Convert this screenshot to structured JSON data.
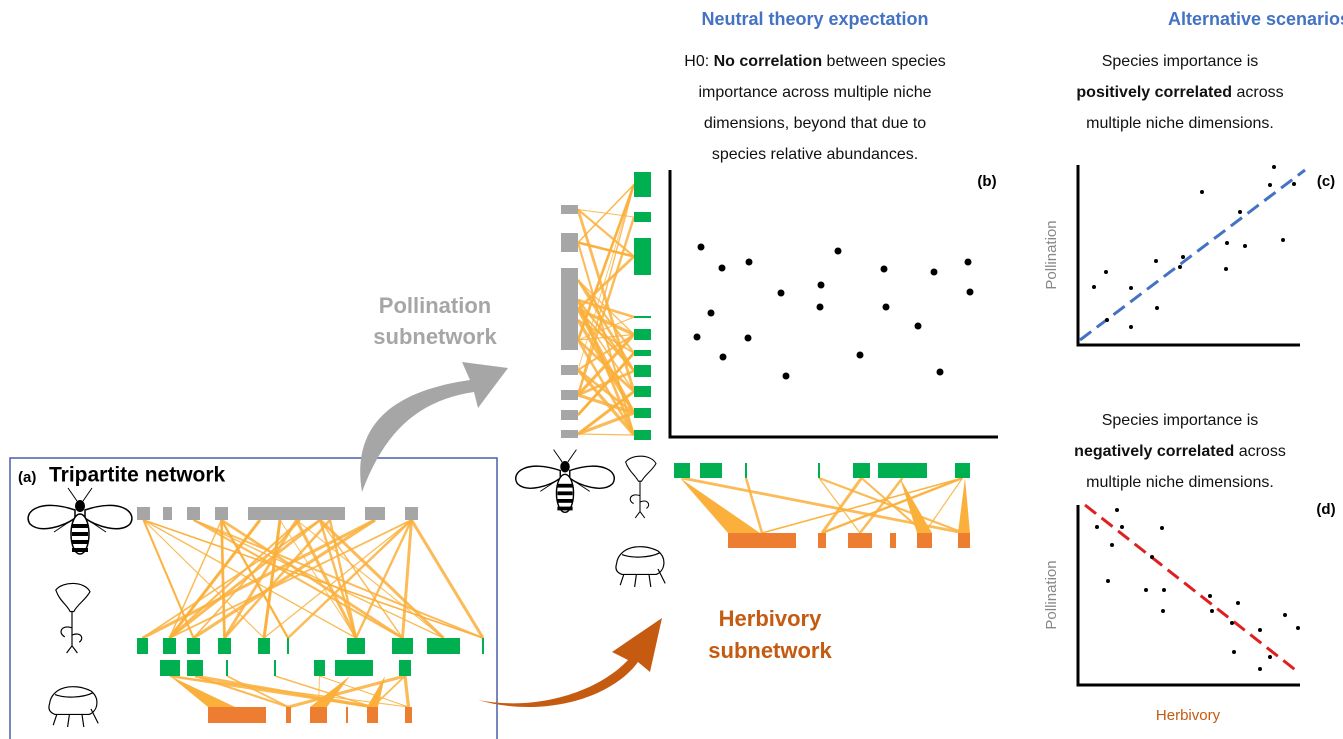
{
  "panel_a": {
    "label": "(a)",
    "title": "Tripartite network"
  },
  "pollination_arrow": {
    "lines": [
      "Pollination",
      "subnetwork"
    ]
  },
  "herbivory_arrow": {
    "lines": [
      "Herbivory",
      "subnetwork"
    ]
  },
  "neutral": {
    "title": "Neutral theory expectation",
    "prefix": "H0:",
    "emphasis": "No correlation",
    "lines": [
      "between species",
      "importance across multiple niche",
      "dimensions, beyond that due to",
      "species relative abundances."
    ],
    "panel_label": "(b)"
  },
  "alternative": {
    "title": "Alternative scenarios",
    "positive": {
      "lines": [
        "Species importance is"
      ],
      "emphasis": "positively correlated",
      "rest": [
        "across",
        "multiple niche dimensions."
      ],
      "panel_label": "(c)",
      "y_label": "Pollination"
    },
    "negative": {
      "lines": [
        "Species importance is"
      ],
      "emphasis": "negatively correlated",
      "rest": [
        "across",
        "multiple niche dimensions."
      ],
      "panel_label": "(d)",
      "y_label": "Pollination",
      "x_label": "Herbivory"
    }
  }
}
